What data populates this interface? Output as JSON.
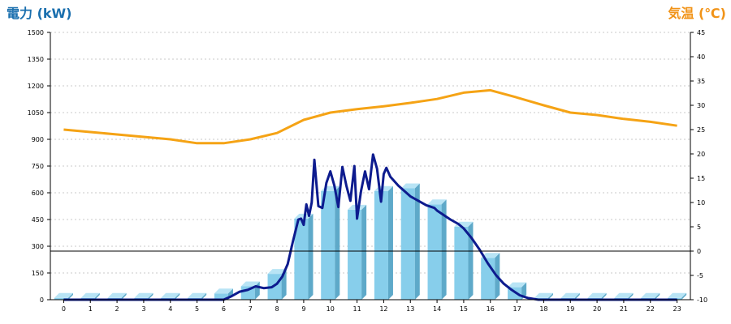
{
  "chart_data": {
    "type": "bar",
    "left_axis_label": "電力 (kW)",
    "right_axis_label": "気温 (℃)",
    "colors": {
      "left_label": "#1a6fae",
      "right_label": "#f19317",
      "bar_front": "#87ceeb",
      "bar_top": "#b8e4f5",
      "bar_side": "#5ea9c9",
      "power_line": "#0d1b8e",
      "temp_line": "#f5a315",
      "grid": "#c8c8c8"
    },
    "grid": true,
    "left_axis": {
      "ylim": [
        0,
        1500
      ],
      "ticks": [
        "0",
        "150",
        "300",
        "450",
        "600",
        "750",
        "900",
        "1050",
        "1200",
        "1350",
        "1500"
      ]
    },
    "right_axis": {
      "ylim": [
        -10,
        45
      ],
      "ticks": [
        "-10",
        "-5",
        "0",
        "5",
        "10",
        "15",
        "20",
        "25",
        "30",
        "35",
        "40",
        "45"
      ]
    },
    "categories": [
      "0",
      "1",
      "2",
      "3",
      "4",
      "5",
      "6",
      "7",
      "8",
      "9",
      "10",
      "11",
      "12",
      "13",
      "14",
      "15",
      "16",
      "17",
      "18",
      "19",
      "20",
      "21",
      "22",
      "23"
    ],
    "series": [
      {
        "values": [
          10,
          10,
          10,
          10,
          10,
          10,
          35,
          75,
          145,
          455,
          610,
          505,
          610,
          625,
          535,
          410,
          235,
          70,
          10,
          10,
          10,
          10,
          10,
          10
        ]
      },
      {
        "x": [
          0,
          1,
          2,
          3,
          4,
          5,
          6,
          6.3,
          6.6,
          6.9,
          7.2,
          7.5,
          7.8,
          8,
          8.2,
          8.4,
          8.6,
          8.8,
          8.9,
          9,
          9.1,
          9.2,
          9.3,
          9.4,
          9.55,
          9.7,
          9.85,
          10,
          10.15,
          10.3,
          10.45,
          10.6,
          10.75,
          10.9,
          11,
          11.15,
          11.3,
          11.45,
          11.6,
          11.75,
          11.9,
          12,
          12.1,
          12.25,
          12.4,
          12.55,
          12.7,
          12.85,
          13,
          13.3,
          13.6,
          13.9,
          14,
          14.2,
          14.5,
          14.8,
          15,
          15.3,
          15.6,
          15.9,
          16.2,
          16.5,
          16.8,
          17.1,
          17.4,
          17.8,
          18,
          19,
          20,
          21,
          22,
          23
        ],
        "values": [
          0,
          0,
          0,
          0,
          0,
          0,
          0,
          20,
          45,
          55,
          75,
          65,
          70,
          90,
          130,
          200,
          330,
          450,
          455,
          420,
          535,
          470,
          545,
          785,
          525,
          515,
          655,
          720,
          640,
          520,
          745,
          640,
          555,
          750,
          455,
          610,
          720,
          620,
          815,
          735,
          550,
          705,
          740,
          690,
          665,
          640,
          620,
          600,
          580,
          555,
          530,
          515,
          500,
          480,
          450,
          425,
          400,
          345,
          280,
          205,
          140,
          90,
          55,
          25,
          10,
          0,
          0,
          0,
          0,
          0,
          0,
          0
        ]
      },
      {
        "x": [
          0,
          1,
          2,
          3,
          4,
          5,
          6,
          7,
          8,
          9,
          10,
          11,
          12,
          13,
          14,
          15,
          16,
          17,
          18,
          19,
          20,
          21,
          22,
          23
        ],
        "values": [
          25,
          24.5,
          24,
          23.5,
          23,
          22.2,
          22.2,
          23,
          24.3,
          27,
          28.5,
          29.2,
          29.8,
          30.5,
          31.3,
          32.6,
          33.1,
          31.6,
          30,
          28.5,
          28,
          27.2,
          26.6,
          25.8
        ]
      }
    ]
  }
}
